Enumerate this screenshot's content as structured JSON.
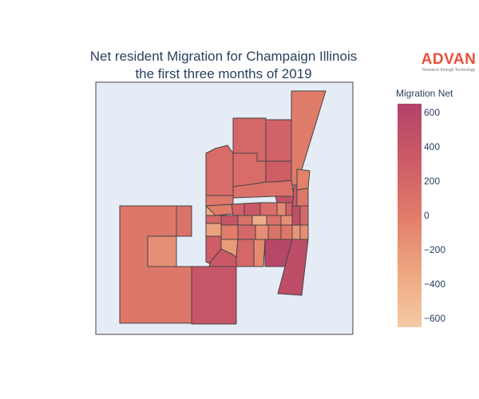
{
  "title_line1": "Net resident Migration for Champaign Illinois",
  "title_line2": "the first three months of 2019",
  "logo": {
    "name": "ADVAN",
    "tagline": "Research through Technology",
    "color": "#e8503a"
  },
  "colorbar": {
    "title": "Migration Net",
    "min": -650,
    "max": 650,
    "ticks": [
      600,
      400,
      200,
      0,
      -200,
      -400,
      -600
    ],
    "tick_labels": [
      "600",
      "400",
      "200",
      "0",
      "−200",
      "−400",
      "−600"
    ],
    "colorscale": [
      "#f3cba5",
      "#eda57f",
      "#e07c6a",
      "#cc5a66",
      "#b2436a"
    ]
  },
  "map_background": "#e5ecf6",
  "chart_data": {
    "type": "choropleth",
    "title": "Net resident Migration for Champaign Illinois the first three months of 2019",
    "value_label": "Migration Net",
    "regions_values": [
      50,
      -150,
      100,
      400,
      350,
      150,
      200,
      250,
      0,
      150,
      300,
      -50,
      100,
      50,
      0,
      250,
      350,
      150,
      -100,
      250,
      200,
      400,
      100,
      -400,
      100,
      -150,
      -300,
      0,
      200,
      -150,
      100,
      50,
      300,
      -250,
      200,
      -100,
      600,
      500,
      200,
      -200,
      500,
      -150,
      350,
      -350,
      50,
      450
    ]
  }
}
